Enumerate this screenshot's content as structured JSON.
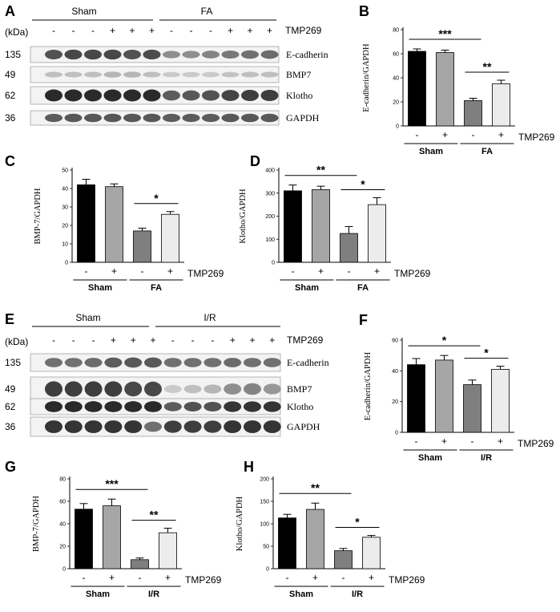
{
  "figure": {
    "blots": [
      {
        "letter": "A",
        "groups": [
          "Sham",
          "FA"
        ],
        "kda_label": "(kDa)",
        "treatment_label": "TMP269",
        "lane_signs": [
          "-",
          "-",
          "-",
          "+",
          "+",
          "+",
          "-",
          "-",
          "-",
          "+",
          "+",
          "+"
        ],
        "rows": [
          {
            "kda": "135",
            "protein": "E-cadherin"
          },
          {
            "kda": "49",
            "protein": "BMP7"
          },
          {
            "kda": "62",
            "protein": "Klotho"
          },
          {
            "kda": "36",
            "protein": "GAPDH"
          }
        ]
      },
      {
        "letter": "E",
        "groups": [
          "Sham",
          "I/R"
        ],
        "kda_label": "(kDa)",
        "treatment_label": "TMP269",
        "lane_signs": [
          "-",
          "-",
          "-",
          "+",
          "+",
          "+",
          "-",
          "-",
          "-",
          "+",
          "+",
          "+"
        ],
        "rows": [
          {
            "kda": "135",
            "protein": "E-cadherin"
          },
          {
            "kda": "49",
            "protein": "BMP7"
          },
          {
            "kda": "62",
            "protein": "Klotho"
          },
          {
            "kda": "36",
            "protein": "GAPDH"
          }
        ]
      }
    ]
  },
  "chart_data": [
    {
      "letter": "B",
      "type": "bar",
      "ylabel": "E-cadherin/GAPDH",
      "categories": [
        "Sham -",
        "Sham +",
        "FA -",
        "FA +"
      ],
      "values": [
        62,
        61,
        21,
        35
      ],
      "errors": [
        2,
        2,
        2,
        3
      ],
      "ylim": [
        0,
        80
      ],
      "yticks": [
        0,
        20,
        40,
        60,
        80
      ],
      "signs": [
        "-",
        "+",
        "-",
        "+"
      ],
      "groups": [
        "Sham",
        "FA"
      ],
      "treatment_label": "TMP269",
      "significance": [
        {
          "from": 0,
          "to": 2,
          "label": "***"
        },
        {
          "from": 2,
          "to": 3,
          "label": "**"
        }
      ],
      "colors": [
        "#000000",
        "#a6a6a6",
        "#7f7f7f",
        "#ececec"
      ]
    },
    {
      "letter": "C",
      "type": "bar",
      "ylabel": "BMP-7/GAPDH",
      "categories": [
        "Sham -",
        "Sham +",
        "FA -",
        "FA +"
      ],
      "values": [
        42,
        41,
        17,
        26
      ],
      "errors": [
        3,
        1.5,
        1.5,
        1.5
      ],
      "ylim": [
        0,
        50
      ],
      "yticks": [
        0,
        10,
        20,
        30,
        40,
        50
      ],
      "signs": [
        "-",
        "+",
        "-",
        "+"
      ],
      "groups": [
        "Sham",
        "FA"
      ],
      "treatment_label": "TMP269",
      "significance": [
        {
          "from": 2,
          "to": 3,
          "label": "*"
        }
      ],
      "colors": [
        "#000000",
        "#a6a6a6",
        "#7f7f7f",
        "#ececec"
      ]
    },
    {
      "letter": "D",
      "type": "bar",
      "ylabel": "Klotho/GAPDH",
      "categories": [
        "Sham -",
        "Sham +",
        "FA -",
        "FA +"
      ],
      "values": [
        310,
        315,
        125,
        250
      ],
      "errors": [
        25,
        15,
        30,
        30
      ],
      "ylim": [
        0,
        400
      ],
      "yticks": [
        0,
        100,
        200,
        300,
        400
      ],
      "signs": [
        "-",
        "+",
        "-",
        "+"
      ],
      "groups": [
        "Sham",
        "FA"
      ],
      "treatment_label": "TMP269",
      "significance": [
        {
          "from": 0,
          "to": 2,
          "label": "**"
        },
        {
          "from": 2,
          "to": 3,
          "label": "*"
        }
      ],
      "colors": [
        "#000000",
        "#a6a6a6",
        "#7f7f7f",
        "#ececec"
      ]
    },
    {
      "letter": "F",
      "type": "bar",
      "ylabel": "E-cadherin/GAPDH",
      "categories": [
        "Sham -",
        "Sham +",
        "I/R -",
        "I/R +"
      ],
      "values": [
        44,
        47,
        31,
        41
      ],
      "errors": [
        4,
        3,
        3,
        2
      ],
      "ylim": [
        0,
        60
      ],
      "yticks": [
        0,
        20,
        40,
        60
      ],
      "signs": [
        "-",
        "+",
        "-",
        "+"
      ],
      "groups": [
        "Sham",
        "I/R"
      ],
      "treatment_label": "TMP269",
      "significance": [
        {
          "from": 0,
          "to": 2,
          "label": "*"
        },
        {
          "from": 2,
          "to": 3,
          "label": "*"
        }
      ],
      "colors": [
        "#000000",
        "#a6a6a6",
        "#7f7f7f",
        "#ececec"
      ]
    },
    {
      "letter": "G",
      "type": "bar",
      "ylabel": "BMP-7/GAPDH",
      "categories": [
        "Sham -",
        "Sham +",
        "I/R -",
        "I/R +"
      ],
      "values": [
        53,
        56,
        8,
        32
      ],
      "errors": [
        5,
        6,
        1.5,
        4
      ],
      "ylim": [
        0,
        80
      ],
      "yticks": [
        0,
        20,
        40,
        60,
        80
      ],
      "signs": [
        "-",
        "+",
        "-",
        "+"
      ],
      "groups": [
        "Sham",
        "I/R"
      ],
      "treatment_label": "TMP269",
      "significance": [
        {
          "from": 0,
          "to": 2,
          "label": "***"
        },
        {
          "from": 2,
          "to": 3,
          "label": "**"
        }
      ],
      "colors": [
        "#000000",
        "#a6a6a6",
        "#7f7f7f",
        "#ececec"
      ]
    },
    {
      "letter": "H",
      "type": "bar",
      "ylabel": "Klotho/GAPDH",
      "categories": [
        "Sham -",
        "Sham +",
        "I/R -",
        "I/R +"
      ],
      "values": [
        113,
        132,
        40,
        70
      ],
      "errors": [
        8,
        14,
        5,
        4
      ],
      "ylim": [
        0,
        200
      ],
      "yticks": [
        0,
        50,
        100,
        150,
        200
      ],
      "signs": [
        "-",
        "+",
        "-",
        "+"
      ],
      "groups": [
        "Sham",
        "I/R"
      ],
      "treatment_label": "TMP269",
      "significance": [
        {
          "from": 0,
          "to": 2,
          "label": "**"
        },
        {
          "from": 2,
          "to": 3,
          "label": "*"
        }
      ],
      "colors": [
        "#000000",
        "#a6a6a6",
        "#7f7f7f",
        "#ececec"
      ]
    }
  ]
}
